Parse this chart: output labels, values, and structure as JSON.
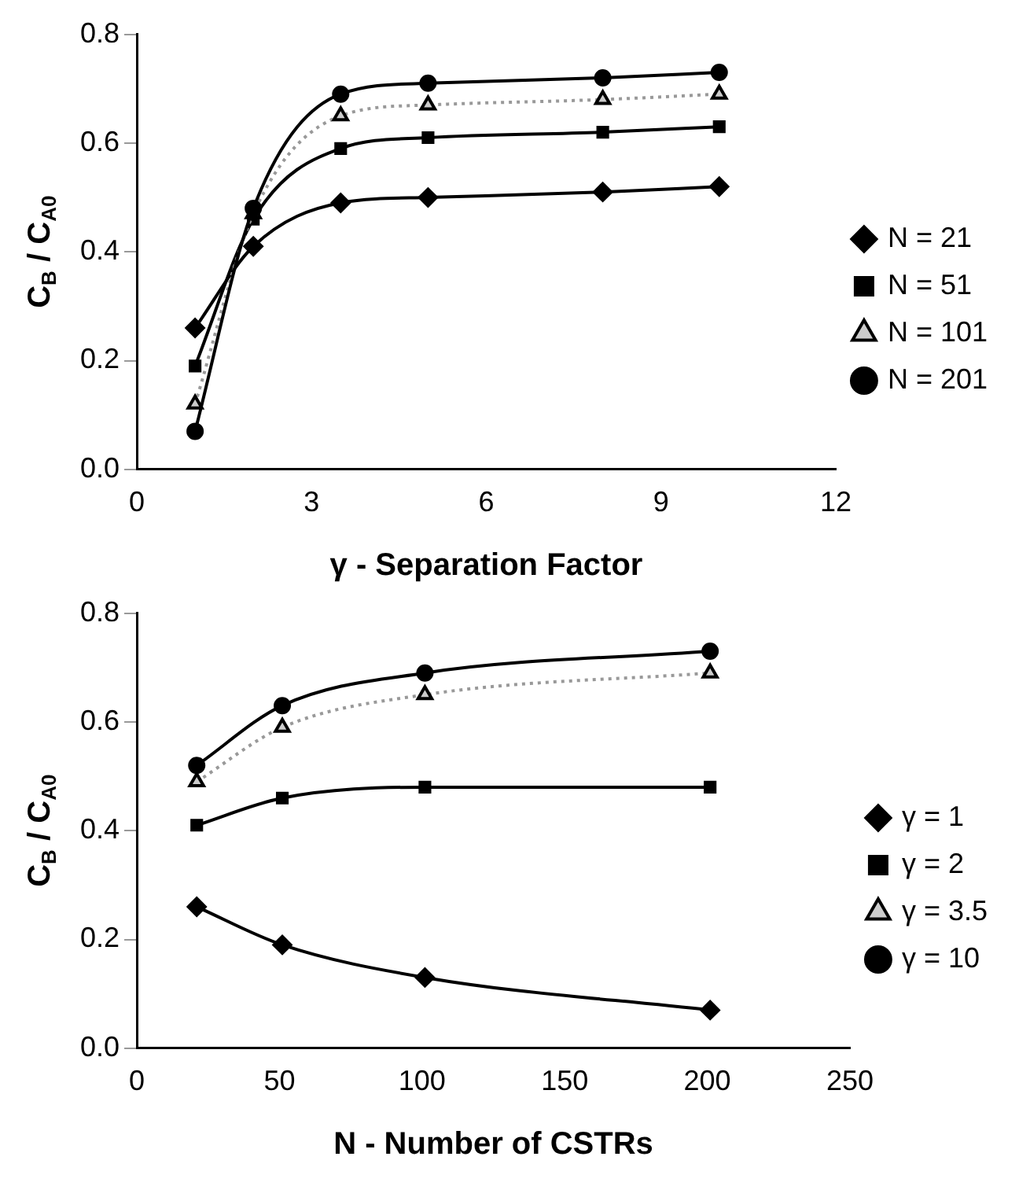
{
  "chart_data": [
    {
      "type": "line",
      "xlabel": "γ - Separation Factor",
      "ylabel": "C$_{B}$ / C$_{A0}$",
      "x": [
        1,
        2,
        3.5,
        5,
        8,
        10
      ],
      "xlim": [
        0,
        12
      ],
      "xticks": [
        0,
        3,
        6,
        9,
        12
      ],
      "ylim": [
        0,
        0.8
      ],
      "yticks": [
        {
          "value": 0,
          "label": "0.0"
        },
        0.2,
        0.4,
        0.6,
        0.8
      ],
      "grid": false,
      "legend": "right",
      "line_style": "solid",
      "series": [
        {
          "name": "N = 21",
          "color": "#000000",
          "marker": "diamond",
          "values": [
            0.26,
            0.41,
            0.49,
            0.5,
            0.51,
            0.52
          ]
        },
        {
          "name": "N = 51",
          "color": "#000000",
          "marker": "square",
          "values": [
            0.19,
            0.46,
            0.59,
            0.61,
            0.62,
            0.63
          ]
        },
        {
          "name": "N = 101",
          "color": "#999999",
          "marker": "triangle",
          "line_style": "dotted",
          "values": [
            0.12,
            0.47,
            0.65,
            0.67,
            0.68,
            0.69
          ]
        },
        {
          "name": "N = 201",
          "color": "#000000",
          "marker": "circle",
          "values": [
            0.07,
            0.48,
            0.69,
            0.71,
            0.72,
            0.73
          ]
        }
      ]
    },
    {
      "type": "line",
      "xlabel": "N - Number of CSTRs",
      "ylabel": "C$_{B}$ / C$_{A0}$",
      "x": [
        21,
        51,
        101,
        201
      ],
      "xlim": [
        0,
        250
      ],
      "xticks": [
        0,
        50,
        100,
        150,
        200,
        250
      ],
      "ylim": [
        0,
        0.8
      ],
      "yticks": [
        {
          "value": 0,
          "label": "0.0"
        },
        0.2,
        0.4,
        0.6,
        0.8
      ],
      "grid": false,
      "legend": "right",
      "line_style": "solid",
      "series": [
        {
          "name": "γ = 1",
          "color": "#000000",
          "marker": "diamond",
          "values": [
            0.26,
            0.19,
            0.13,
            0.07
          ]
        },
        {
          "name": "γ = 2",
          "color": "#000000",
          "marker": "square",
          "values": [
            0.41,
            0.46,
            0.48,
            0.48
          ]
        },
        {
          "name": "γ = 3.5",
          "color": "#999999",
          "marker": "triangle",
          "line_style": "dotted",
          "values": [
            0.49,
            0.59,
            0.65,
            0.69
          ]
        },
        {
          "name": "γ = 10",
          "color": "#000000",
          "marker": "circle",
          "values": [
            0.52,
            0.63,
            0.69,
            0.73
          ]
        }
      ]
    }
  ]
}
